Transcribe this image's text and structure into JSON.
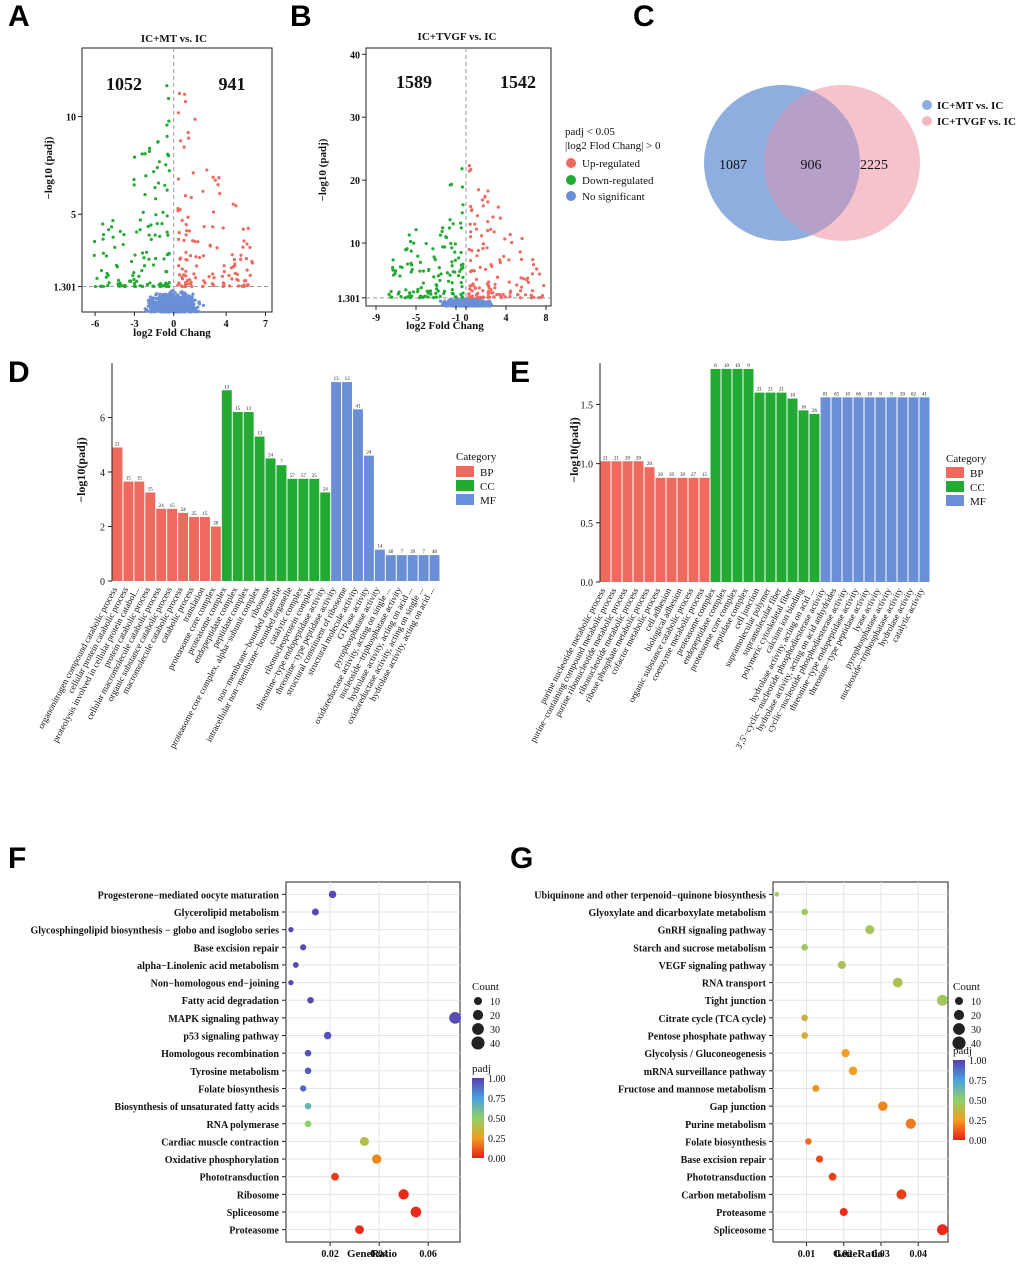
{
  "colors": {
    "up": "#ee6a5f",
    "down": "#22aa33",
    "ns": "#6b8fd6",
    "bp": "#ee6a5f",
    "cc": "#22aa33",
    "mf": "#6b8fd6",
    "venn_a": "#8eaee0",
    "venn_b": "#f4b8c3",
    "venn_overlap": "#b7a0c7"
  },
  "panels": {
    "a": "A",
    "b": "B",
    "c": "C",
    "d": "D",
    "e": "E",
    "f": "F",
    "g": "G"
  },
  "chart_data": [
    {
      "id": "A",
      "type": "scatter",
      "title": "IC+MT vs. IC",
      "xlabel": "log2 Fold Chang",
      "ylabel": "−log10 (padj)",
      "xticks": [
        "-6",
        "-3",
        "0",
        "4",
        "7"
      ],
      "yticks": [
        "1.301",
        "5",
        "10"
      ],
      "up_count": "941",
      "down_count": "1052",
      "xlim": [
        -7,
        7.5
      ],
      "ylim": [
        0,
        13.5
      ],
      "threshold": 1.301
    },
    {
      "id": "B",
      "type": "scatter",
      "title": "IC+TVGF vs. IC",
      "xlabel": "log2 Fold Chang",
      "ylabel": "−log10 (padj)",
      "xticks": [
        "-9",
        "-5",
        "-1",
        "0",
        "4",
        "8"
      ],
      "yticks": [
        "1.301",
        "10",
        "20",
        "30",
        "40"
      ],
      "up_count": "1542",
      "down_count": "1589",
      "xlim": [
        -10,
        8.5
      ],
      "ylim": [
        0,
        41
      ],
      "threshold": 1.301
    },
    {
      "id": "legend_volcano",
      "type": "legend",
      "line1": "padj < 0.05",
      "line2": "|log2 Flod Chang| > 0",
      "items": [
        "Up-regulated",
        "Down-regulated",
        "No significant"
      ]
    },
    {
      "id": "C",
      "type": "venn",
      "sets": [
        "IC+MT vs. IC",
        "IC+TVGF  vs. IC"
      ],
      "only_a": "1087",
      "both": "906",
      "only_b": "2225"
    },
    {
      "id": "D",
      "type": "bar",
      "ylabel": "−log10(padj)",
      "yticks": [
        "0",
        "2",
        "4",
        "6"
      ],
      "ylim": [
        0,
        8
      ],
      "legend_title": "Category",
      "legend": [
        "BP",
        "CC",
        "MF"
      ],
      "bars": [
        {
          "label": "organonitrogen compound catabolic process",
          "value": 4.9,
          "cat": "BP",
          "n": "21"
        },
        {
          "label": "cellular protein catabolic process",
          "value": 3.65,
          "cat": "BP",
          "n": "15"
        },
        {
          "label": "proteolysis involved in cellular protein catabolic process",
          "value": 3.65,
          "cat": "BP",
          "n": "15"
        },
        {
          "label": "protein catabolic process",
          "value": 3.25,
          "cat": "BP",
          "n": "15"
        },
        {
          "label": "cellular macromolecule catabolic process",
          "value": 2.65,
          "cat": "BP",
          "n": "24"
        },
        {
          "label": "organic substance catabolic process",
          "value": 2.65,
          "cat": "BP",
          "n": "15"
        },
        {
          "label": "macromolecule catabolic process",
          "value": 2.5,
          "cat": "BP",
          "n": "24"
        },
        {
          "label": "catabolic process",
          "value": 2.35,
          "cat": "BP",
          "n": "25"
        },
        {
          "label": "translation",
          "value": 2.35,
          "cat": "BP",
          "n": "15"
        },
        {
          "label": "proteasome core complex",
          "value": 2.0,
          "cat": "BP",
          "n": "28"
        },
        {
          "label": "proteasome complex",
          "value": 7.0,
          "cat": "CC",
          "n": "13"
        },
        {
          "label": "endopeptidase complex",
          "value": 6.2,
          "cat": "CC",
          "n": "15"
        },
        {
          "label": "peptidase complex",
          "value": 6.2,
          "cat": "CC",
          "n": "13"
        },
        {
          "label": "proteasome core complex, alpha−subunit complex",
          "value": 5.3,
          "cat": "CC",
          "n": "13"
        },
        {
          "label": "ribosome",
          "value": 4.5,
          "cat": "CC",
          "n": "24"
        },
        {
          "label": "non−membrane−bounded organelle",
          "value": 4.25,
          "cat": "CC",
          "n": "7"
        },
        {
          "label": "intracellular non−membrane−bounded organelle",
          "value": 3.75,
          "cat": "CC",
          "n": "57"
        },
        {
          "label": "catalytic complex",
          "value": 3.75,
          "cat": "CC",
          "n": "57"
        },
        {
          "label": "ribonucleoprotein complex",
          "value": 3.75,
          "cat": "CC",
          "n": "25"
        },
        {
          "label": "threonine−type endopeptidase activity",
          "value": 3.25,
          "cat": "CC",
          "n": "24"
        },
        {
          "label": "threonine−type peptidase activity",
          "value": 7.3,
          "cat": "MF",
          "n": "13"
        },
        {
          "label": "structural constituent of ribosome",
          "value": 7.3,
          "cat": "MF",
          "n": "13"
        },
        {
          "label": "structural molecule activity",
          "value": 6.3,
          "cat": "MF",
          "n": "41"
        },
        {
          "label": "GTPase activity",
          "value": 4.6,
          "cat": "MF",
          "n": "24"
        },
        {
          "label": "pyrophosphatase activity",
          "value": 1.15,
          "cat": "MF",
          "n": "14"
        },
        {
          "label": "oxidoreductase activity, acting on single ...",
          "value": 0.95,
          "cat": "MF",
          "n": "40"
        },
        {
          "label": "nucleoside−triphosphatase activity",
          "value": 0.95,
          "cat": "MF",
          "n": "7"
        },
        {
          "label": "hydrolase activity, acting on acid ...",
          "value": 0.95,
          "cat": "MF",
          "n": "39"
        },
        {
          "label": "oxidoreductase activity, acting on single ...",
          "value": 0.95,
          "cat": "MF",
          "n": "7"
        },
        {
          "label": "hydrolase activity, acting on acid ...",
          "value": 0.95,
          "cat": "MF",
          "n": "40"
        }
      ]
    },
    {
      "id": "E",
      "type": "bar",
      "ylabel": "−log10(padj)",
      "yticks": [
        "0.0",
        "0.5",
        "1.0",
        "1.5"
      ],
      "ylim": [
        0,
        1.85
      ],
      "legend_title": "Category",
      "legend": [
        "BP",
        "CC",
        "MF"
      ],
      "bars": [
        {
          "label": "purine nucleotide metabolic process",
          "value": 1.02,
          "cat": "BP",
          "n": "21"
        },
        {
          "label": "purine−containing compound metabolic process",
          "value": 1.02,
          "cat": "BP",
          "n": "21"
        },
        {
          "label": "purine ribonucleotide metabolic process",
          "value": 1.02,
          "cat": "BP",
          "n": "20"
        },
        {
          "label": "ribonucleotide metabolic process",
          "value": 1.02,
          "cat": "BP",
          "n": "20"
        },
        {
          "label": "ribose phosphate metabolic process",
          "value": 0.97,
          "cat": "BP",
          "n": "20"
        },
        {
          "label": "cofactor metabolic process",
          "value": 0.88,
          "cat": "BP",
          "n": "20"
        },
        {
          "label": "cell adhesion",
          "value": 0.88,
          "cat": "BP",
          "n": "39"
        },
        {
          "label": "biological adhesion",
          "value": 0.88,
          "cat": "BP",
          "n": "39"
        },
        {
          "label": "organic substance catabolic process",
          "value": 0.88,
          "cat": "BP",
          "n": "27"
        },
        {
          "label": "coenzyme metabolic process",
          "value": 0.88,
          "cat": "BP",
          "n": "15"
        },
        {
          "label": "proteasome complex",
          "value": 1.8,
          "cat": "CC",
          "n": "8"
        },
        {
          "label": "endopeptidase complex",
          "value": 1.8,
          "cat": "CC",
          "n": "10"
        },
        {
          "label": "proteasome core complex",
          "value": 1.8,
          "cat": "CC",
          "n": "10"
        },
        {
          "label": "peptidase complex",
          "value": 1.8,
          "cat": "CC",
          "n": "9"
        },
        {
          "label": "cell junction",
          "value": 1.6,
          "cat": "CC",
          "n": "21"
        },
        {
          "label": "supramolecular polymer",
          "value": 1.6,
          "cat": "CC",
          "n": "21"
        },
        {
          "label": "supramolecular fiber",
          "value": 1.6,
          "cat": "CC",
          "n": "21"
        },
        {
          "label": "polymeric cytoskeletal fiber",
          "value": 1.55,
          "cat": "CC",
          "n": "10"
        },
        {
          "label": "calcium ion binding",
          "value": 1.45,
          "cat": "CC",
          "n": "16"
        },
        {
          "label": "hydrolase activity, acting on acid ...",
          "value": 1.42,
          "cat": "CC",
          "n": "26"
        },
        {
          "label": "3',5'−cyclic−nucleotide phosphodiesterase activity",
          "value": 1.56,
          "cat": "MF",
          "n": "81"
        },
        {
          "label": "hydrolase activity, acting on acid anhydrides",
          "value": 1.56,
          "cat": "MF",
          "n": "65"
        },
        {
          "label": "cyclic−nucleotide phosphodiesterase activity",
          "value": 1.56,
          "cat": "MF",
          "n": "10"
        },
        {
          "label": "threonine−type endopeptidase activity",
          "value": 1.56,
          "cat": "MF",
          "n": "66"
        },
        {
          "label": "threonine−type peptidase activity",
          "value": 1.56,
          "cat": "MF",
          "n": "10"
        },
        {
          "label": "lyase activity",
          "value": 1.56,
          "cat": "MF",
          "n": "9"
        },
        {
          "label": "pyrophosphatase activity",
          "value": 1.56,
          "cat": "MF",
          "n": "9"
        },
        {
          "label": "nucleoside−triphosphatase activity",
          "value": 1.56,
          "cat": "MF",
          "n": "20"
        },
        {
          "label": "hydrolase activity",
          "value": 1.56,
          "cat": "MF",
          "n": "62"
        },
        {
          "label": "catalytic activity",
          "value": 1.56,
          "cat": "MF",
          "n": "41"
        }
      ]
    },
    {
      "id": "F",
      "type": "scatter",
      "xlabel": "GeneRatio",
      "xticks": [
        "0.02",
        "0.04",
        "0.06"
      ],
      "xlim": [
        0.002,
        0.073
      ],
      "legend_count_title": "Count",
      "count_ticks": [
        "10",
        "20",
        "30",
        "40"
      ],
      "legend_padj_title": "padj",
      "padj_ticks": [
        "1.00",
        "0.75",
        "0.50",
        "0.25",
        "0.00"
      ],
      "points": [
        {
          "term": "Progesterone−mediated oocyte maturation",
          "x": 0.021,
          "count": 8,
          "padj": 0.98
        },
        {
          "term": "Glycerolipid metabolism",
          "x": 0.014,
          "count": 6,
          "padj": 0.98
        },
        {
          "term": "Glycosphingolipid biosynthesis − globo and isoglobo series",
          "x": 0.004,
          "count": 2,
          "padj": 0.98
        },
        {
          "term": "Base excision repair",
          "x": 0.009,
          "count": 4,
          "padj": 0.98
        },
        {
          "term": "alpha−Linolenic acid metabolism",
          "x": 0.006,
          "count": 3,
          "padj": 0.98
        },
        {
          "term": "Non−homologous end−joining",
          "x": 0.004,
          "count": 2,
          "padj": 0.98
        },
        {
          "term": "Fatty acid degradation",
          "x": 0.012,
          "count": 5,
          "padj": 0.98
        },
        {
          "term": "MAPK signaling pathway",
          "x": 0.071,
          "count": 30,
          "padj": 0.97
        },
        {
          "term": "p53 signaling pathway",
          "x": 0.019,
          "count": 8,
          "padj": 0.95
        },
        {
          "term": "Homologous recombination",
          "x": 0.011,
          "count": 5,
          "padj": 0.95
        },
        {
          "term": "Tyrosine metabolism",
          "x": 0.011,
          "count": 5,
          "padj": 0.93
        },
        {
          "term": "Folate biosynthesis",
          "x": 0.009,
          "count": 4,
          "padj": 0.9
        },
        {
          "term": "Biosynthesis of unsaturated fatty acids",
          "x": 0.011,
          "count": 5,
          "padj": 0.65
        },
        {
          "term": "RNA polymerase",
          "x": 0.011,
          "count": 5,
          "padj": 0.5
        },
        {
          "term": "Cardiac muscle contraction",
          "x": 0.034,
          "count": 14,
          "padj": 0.4
        },
        {
          "term": "Oxidative phosphorylation",
          "x": 0.039,
          "count": 16,
          "padj": 0.2
        },
        {
          "term": "Phototransduction",
          "x": 0.022,
          "count": 9,
          "padj": 0.05
        },
        {
          "term": "Ribosome",
          "x": 0.05,
          "count": 21,
          "padj": 0.02
        },
        {
          "term": "Spliceosome",
          "x": 0.055,
          "count": 23,
          "padj": 0.02
        },
        {
          "term": "Proteasome",
          "x": 0.032,
          "count": 13,
          "padj": 0.02
        }
      ]
    },
    {
      "id": "G",
      "type": "scatter",
      "xlabel": "GeneRatio",
      "xticks": [
        "0.01",
        "0.02",
        "0.03",
        "0.04"
      ],
      "xlim": [
        0.001,
        0.048
      ],
      "legend_count_title": "Count",
      "count_ticks": [
        "10",
        "20",
        "30",
        "40"
      ],
      "legend_padj_title": "padj",
      "padj_ticks": [
        "1.00",
        "0.75",
        "0.50",
        "0.25",
        "0.00"
      ],
      "points": [
        {
          "term": "Ubiquinone and other terpenoid−quinone biosynthesis",
          "x": 0.002,
          "count": 1,
          "padj": 0.45
        },
        {
          "term": "Glyoxylate and dicarboxylate metabolism",
          "x": 0.0095,
          "count": 5,
          "padj": 0.45
        },
        {
          "term": "GnRH signaling pathway",
          "x": 0.027,
          "count": 14,
          "padj": 0.45
        },
        {
          "term": "Starch and sucrose metabolism",
          "x": 0.0095,
          "count": 5,
          "padj": 0.45
        },
        {
          "term": "VEGF signaling pathway",
          "x": 0.0195,
          "count": 10,
          "padj": 0.42
        },
        {
          "term": "RNA transport",
          "x": 0.0345,
          "count": 18,
          "padj": 0.42
        },
        {
          "term": "Tight junction",
          "x": 0.0465,
          "count": 24,
          "padj": 0.45
        },
        {
          "term": "Citrate cycle (TCA cycle)",
          "x": 0.0095,
          "count": 5,
          "padj": 0.35
        },
        {
          "term": "Pentose phosphate pathway",
          "x": 0.0095,
          "count": 5,
          "padj": 0.32
        },
        {
          "term": "Glycolysis / Gluconeogenesis",
          "x": 0.0205,
          "count": 11,
          "padj": 0.25
        },
        {
          "term": "mRNA surveillance pathway",
          "x": 0.0225,
          "count": 12,
          "padj": 0.25
        },
        {
          "term": "Fructose and mannose metabolism",
          "x": 0.0125,
          "count": 6,
          "padj": 0.22
        },
        {
          "term": "Gap junction",
          "x": 0.0305,
          "count": 16,
          "padj": 0.2
        },
        {
          "term": "Purine metabolism",
          "x": 0.038,
          "count": 20,
          "padj": 0.18
        },
        {
          "term": "Folate biosynthesis",
          "x": 0.0105,
          "count": 5,
          "padj": 0.15
        },
        {
          "term": "Base excision repair",
          "x": 0.0135,
          "count": 7,
          "padj": 0.08
        },
        {
          "term": "Phototransduction",
          "x": 0.017,
          "count": 9,
          "padj": 0.06
        },
        {
          "term": "Carbon metabolism",
          "x": 0.0355,
          "count": 19,
          "padj": 0.06
        },
        {
          "term": "Proteasome",
          "x": 0.02,
          "count": 10,
          "padj": 0.03
        },
        {
          "term": "Spliceosome",
          "x": 0.0465,
          "count": 24,
          "padj": 0.02
        }
      ]
    }
  ]
}
